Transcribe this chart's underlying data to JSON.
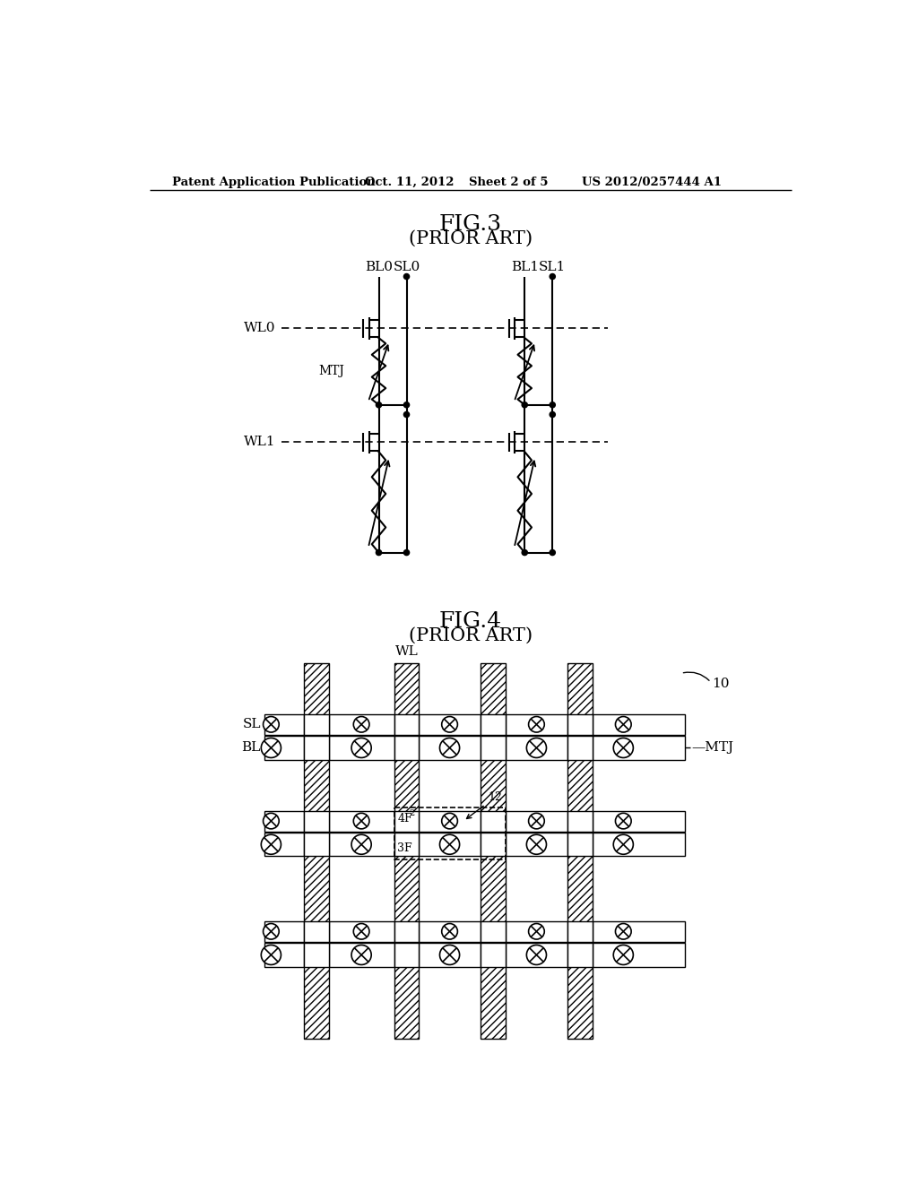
{
  "title_text": "Patent Application Publication",
  "date_text": "Oct. 11, 2012",
  "sheet_text": "Sheet 2 of 5",
  "patent_text": "US 2012/0257444 A1",
  "fig3_title": "FIG.3",
  "fig3_subtitle": "(PRIOR ART)",
  "fig4_title": "FIG.4",
  "fig4_subtitle": "(PRIOR ART)",
  "bg_color": "#ffffff"
}
